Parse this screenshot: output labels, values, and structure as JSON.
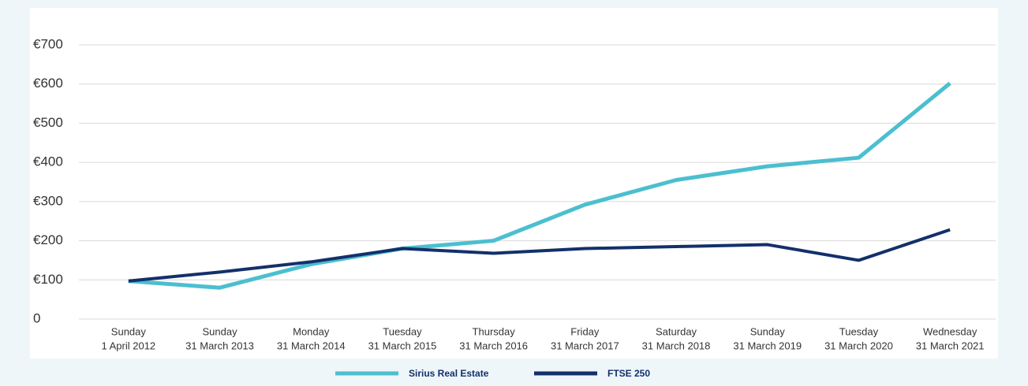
{
  "chart_data": {
    "type": "line",
    "categories": [
      [
        "Sunday",
        "1 April 2012"
      ],
      [
        "Sunday",
        "31 March 2013"
      ],
      [
        "Monday",
        "31 March 2014"
      ],
      [
        "Tuesday",
        "31 March 2015"
      ],
      [
        "Thursday",
        "31 March 2016"
      ],
      [
        "Friday",
        "31 March 2017"
      ],
      [
        "Saturday",
        "31 March 2018"
      ],
      [
        "Sunday",
        "31 March 2019"
      ],
      [
        "Tuesday",
        "31 March 2020"
      ],
      [
        "Wednesday",
        "31 March 2021"
      ]
    ],
    "series": [
      {
        "name": "Sirius Real Estate",
        "color": "#4bbfcf",
        "values": [
          97,
          80,
          140,
          180,
          200,
          292,
          355,
          390,
          412,
          602
        ]
      },
      {
        "name": "FTSE 250",
        "color": "#13306b",
        "values": [
          97,
          120,
          146,
          180,
          168,
          180,
          185,
          190,
          150,
          228
        ]
      }
    ],
    "ylim": [
      0,
      700
    ],
    "yticks": [
      0,
      {
        "value": 100,
        "label": "€100"
      },
      {
        "value": 200,
        "label": "€200"
      },
      {
        "value": 300,
        "label": "€300"
      },
      {
        "value": 400,
        "label": "€400"
      },
      {
        "value": 500,
        "label": "€500"
      },
      {
        "value": 600,
        "label": "€600"
      },
      {
        "value": 700,
        "label": "€700"
      }
    ],
    "grid": true,
    "legend": "bottom"
  }
}
